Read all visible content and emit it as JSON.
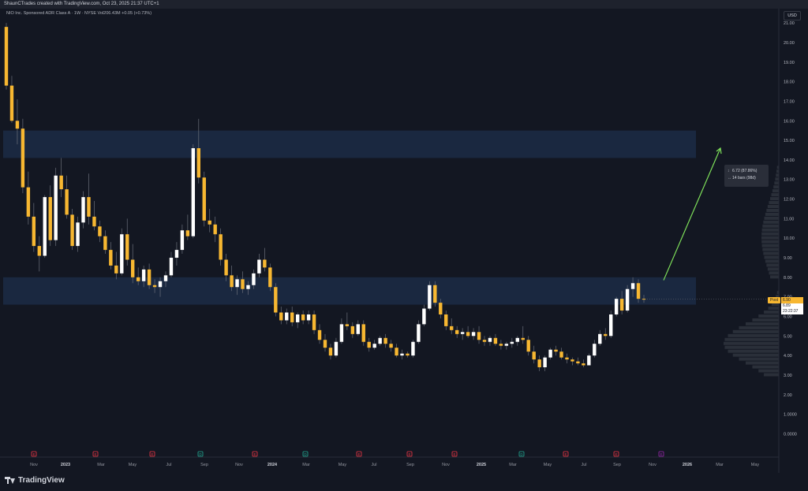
{
  "caption": "ShaunCTrades created with TradingView.com, Oct 23, 2025 21:37 UTC+1",
  "symbol_line": "NIO Inc. Sponsored ADR Class A · 1W · NYSE  Vol206.43M  +0.05 (+0.73%)",
  "currency": "USD",
  "brand": "TradingView",
  "measure": {
    "price_change": "6.72 (87.86%)",
    "bars": "14 bars (98d)"
  },
  "post_label": "Post",
  "post_price": "6.90",
  "last_price": "6.89",
  "countdown": "23:22:37",
  "chart_data": {
    "type": "candlestick",
    "ylim": [
      -0.1,
      21.5
    ],
    "y_ticks": [
      "21.00",
      "20.00",
      "19.00",
      "18.00",
      "17.00",
      "16.00",
      "15.00",
      "14.00",
      "13.00",
      "12.00",
      "11.00",
      "10.00",
      "9.00",
      "8.00",
      "7.00",
      "6.00",
      "5.00",
      "4.00",
      "3.00",
      "2.00",
      "1.0000",
      "0.0000"
    ],
    "x_ticks": [
      "Nov",
      "2023",
      "Mar",
      "May",
      "Jul",
      "Sep",
      "Nov",
      "2024",
      "Mar",
      "May",
      "Jul",
      "Sep",
      "Nov",
      "2025",
      "Mar",
      "May",
      "Jul",
      "Sep",
      "Nov",
      "2026",
      "Mar",
      "May"
    ],
    "event_markers": [
      "E",
      "E",
      "E",
      "D",
      "E",
      "D",
      "E",
      "E",
      "E",
      "D",
      "E",
      "E",
      "E",
      "D",
      "E"
    ],
    "zones": [
      {
        "low": 14.1,
        "high": 15.5,
        "color": "#1c2a44"
      },
      {
        "low": 6.6,
        "high": 8.0,
        "color": "#1c2a44"
      }
    ],
    "target_arrow": {
      "from": 7.85,
      "to": 14.6,
      "color": "#7ee05a"
    },
    "up_color": "#ffffff",
    "down_color": "#f7b731",
    "candles": [
      [
        20.8,
        21.0,
        17.6,
        17.8
      ],
      [
        17.8,
        18.3,
        15.9,
        16.0
      ],
      [
        16.0,
        17.1,
        14.8,
        15.6
      ],
      [
        15.6,
        16.1,
        12.3,
        12.6
      ],
      [
        12.6,
        13.4,
        10.7,
        11.1
      ],
      [
        11.1,
        11.8,
        9.3,
        9.6
      ],
      [
        9.6,
        10.1,
        8.3,
        9.1
      ],
      [
        9.1,
        12.2,
        9.0,
        12.1
      ],
      [
        12.1,
        12.7,
        9.6,
        9.9
      ],
      [
        9.9,
        13.6,
        9.6,
        13.2
      ],
      [
        13.2,
        14.1,
        12.1,
        12.5
      ],
      [
        12.5,
        13.2,
        11.0,
        11.2
      ],
      [
        11.2,
        11.5,
        9.4,
        9.6
      ],
      [
        9.6,
        11.1,
        9.3,
        10.8
      ],
      [
        10.8,
        12.4,
        10.5,
        12.1
      ],
      [
        12.1,
        13.3,
        10.7,
        11.1
      ],
      [
        11.1,
        11.9,
        10.4,
        10.6
      ],
      [
        10.6,
        10.9,
        9.8,
        10.1
      ],
      [
        10.1,
        10.4,
        9.2,
        9.4
      ],
      [
        9.4,
        9.8,
        8.4,
        8.6
      ],
      [
        8.6,
        9.3,
        7.9,
        8.2
      ],
      [
        8.2,
        10.5,
        8.1,
        10.2
      ],
      [
        10.2,
        11.0,
        8.6,
        8.9
      ],
      [
        8.9,
        9.7,
        7.7,
        8.0
      ],
      [
        8.0,
        8.5,
        7.6,
        7.8
      ],
      [
        7.8,
        8.6,
        7.5,
        8.4
      ],
      [
        8.4,
        8.7,
        7.4,
        7.6
      ],
      [
        7.6,
        7.9,
        7.2,
        7.5
      ],
      [
        7.5,
        8.0,
        7.0,
        7.8
      ],
      [
        7.8,
        8.3,
        7.5,
        8.1
      ],
      [
        8.1,
        9.3,
        8.0,
        9.0
      ],
      [
        9.0,
        9.8,
        8.6,
        9.4
      ],
      [
        9.4,
        10.7,
        9.2,
        10.4
      ],
      [
        10.4,
        11.2,
        9.9,
        10.1
      ],
      [
        10.1,
        14.8,
        10.0,
        14.6
      ],
      [
        14.6,
        16.1,
        12.8,
        13.1
      ],
      [
        13.1,
        13.4,
        10.6,
        10.9
      ],
      [
        10.9,
        11.5,
        10.3,
        10.7
      ],
      [
        10.7,
        11.1,
        9.8,
        10.2
      ],
      [
        10.2,
        10.5,
        8.6,
        8.9
      ],
      [
        8.9,
        9.2,
        7.8,
        8.1
      ],
      [
        8.1,
        8.6,
        7.3,
        7.5
      ],
      [
        7.5,
        8.1,
        7.1,
        7.9
      ],
      [
        7.9,
        8.3,
        7.2,
        7.4
      ],
      [
        7.4,
        7.8,
        7.1,
        7.6
      ],
      [
        7.6,
        8.4,
        7.4,
        8.2
      ],
      [
        8.2,
        9.2,
        8.0,
        8.9
      ],
      [
        8.9,
        9.5,
        8.3,
        8.5
      ],
      [
        8.5,
        8.7,
        7.3,
        7.5
      ],
      [
        7.5,
        7.7,
        6.0,
        6.2
      ],
      [
        6.2,
        6.5,
        5.6,
        5.8
      ],
      [
        5.8,
        6.4,
        5.6,
        6.2
      ],
      [
        6.2,
        6.5,
        5.5,
        5.7
      ],
      [
        5.7,
        6.2,
        5.4,
        6.1
      ],
      [
        6.1,
        6.3,
        5.6,
        5.8
      ],
      [
        5.8,
        6.3,
        5.6,
        6.1
      ],
      [
        6.1,
        6.3,
        5.1,
        5.3
      ],
      [
        5.3,
        5.6,
        4.6,
        4.8
      ],
      [
        4.8,
        5.1,
        4.2,
        4.4
      ],
      [
        4.4,
        4.6,
        3.8,
        4.0
      ],
      [
        4.0,
        4.9,
        3.9,
        4.7
      ],
      [
        4.7,
        5.9,
        4.6,
        5.6
      ],
      [
        5.6,
        6.2,
        5.3,
        5.5
      ],
      [
        5.5,
        5.7,
        4.9,
        5.1
      ],
      [
        5.1,
        5.8,
        5.0,
        5.6
      ],
      [
        5.6,
        5.8,
        4.5,
        4.7
      ],
      [
        4.7,
        4.9,
        4.2,
        4.4
      ],
      [
        4.4,
        4.8,
        4.3,
        4.6
      ],
      [
        4.6,
        5.0,
        4.5,
        4.9
      ],
      [
        4.9,
        5.1,
        4.4,
        4.6
      ],
      [
        4.6,
        4.8,
        4.2,
        4.4
      ],
      [
        4.4,
        4.6,
        3.9,
        4.0
      ],
      [
        4.0,
        4.3,
        3.8,
        4.1
      ],
      [
        4.1,
        4.2,
        3.9,
        4.0
      ],
      [
        4.0,
        4.8,
        3.9,
        4.7
      ],
      [
        4.7,
        5.8,
        4.6,
        5.6
      ],
      [
        5.6,
        6.6,
        5.5,
        6.4
      ],
      [
        6.4,
        7.8,
        6.3,
        7.6
      ],
      [
        7.6,
        7.8,
        6.5,
        6.7
      ],
      [
        6.7,
        6.9,
        5.9,
        6.1
      ],
      [
        6.1,
        6.3,
        5.3,
        5.5
      ],
      [
        5.5,
        5.9,
        5.1,
        5.3
      ],
      [
        5.3,
        5.5,
        4.9,
        5.1
      ],
      [
        5.1,
        5.4,
        4.8,
        5.2
      ],
      [
        5.2,
        5.5,
        4.9,
        5.0
      ],
      [
        5.0,
        5.4,
        4.8,
        5.2
      ],
      [
        5.2,
        5.5,
        4.6,
        4.8
      ],
      [
        4.8,
        5.0,
        4.5,
        4.7
      ],
      [
        4.7,
        5.0,
        4.5,
        4.9
      ],
      [
        4.9,
        5.1,
        4.5,
        4.6
      ],
      [
        4.6,
        4.8,
        4.3,
        4.5
      ],
      [
        4.5,
        4.7,
        4.3,
        4.6
      ],
      [
        4.6,
        4.9,
        4.4,
        4.7
      ],
      [
        4.7,
        5.0,
        4.5,
        4.9
      ],
      [
        4.9,
        5.5,
        4.6,
        4.8
      ],
      [
        4.8,
        5.0,
        4.0,
        4.2
      ],
      [
        4.2,
        4.5,
        3.6,
        3.8
      ],
      [
        3.8,
        4.0,
        3.2,
        3.4
      ],
      [
        3.4,
        4.0,
        3.2,
        3.9
      ],
      [
        3.9,
        4.4,
        3.8,
        4.3
      ],
      [
        4.3,
        4.5,
        4.0,
        4.2
      ],
      [
        4.2,
        4.4,
        3.8,
        3.9
      ],
      [
        3.9,
        4.1,
        3.6,
        3.8
      ],
      [
        3.8,
        3.9,
        3.5,
        3.7
      ],
      [
        3.7,
        3.9,
        3.5,
        3.6
      ],
      [
        3.6,
        3.8,
        3.4,
        3.5
      ],
      [
        3.5,
        4.1,
        3.5,
        4.0
      ],
      [
        4.0,
        4.8,
        3.9,
        4.6
      ],
      [
        4.6,
        5.3,
        4.5,
        5.1
      ],
      [
        5.1,
        5.4,
        4.8,
        5.0
      ],
      [
        5.0,
        6.3,
        4.9,
        6.1
      ],
      [
        6.1,
        7.0,
        6.0,
        6.9
      ],
      [
        6.9,
        7.3,
        6.1,
        6.3
      ],
      [
        6.3,
        7.6,
        6.2,
        7.4
      ],
      [
        7.4,
        8.0,
        7.0,
        7.7
      ],
      [
        7.7,
        7.9,
        6.7,
        6.9
      ],
      [
        6.9,
        7.1,
        6.7,
        6.89
      ]
    ]
  }
}
